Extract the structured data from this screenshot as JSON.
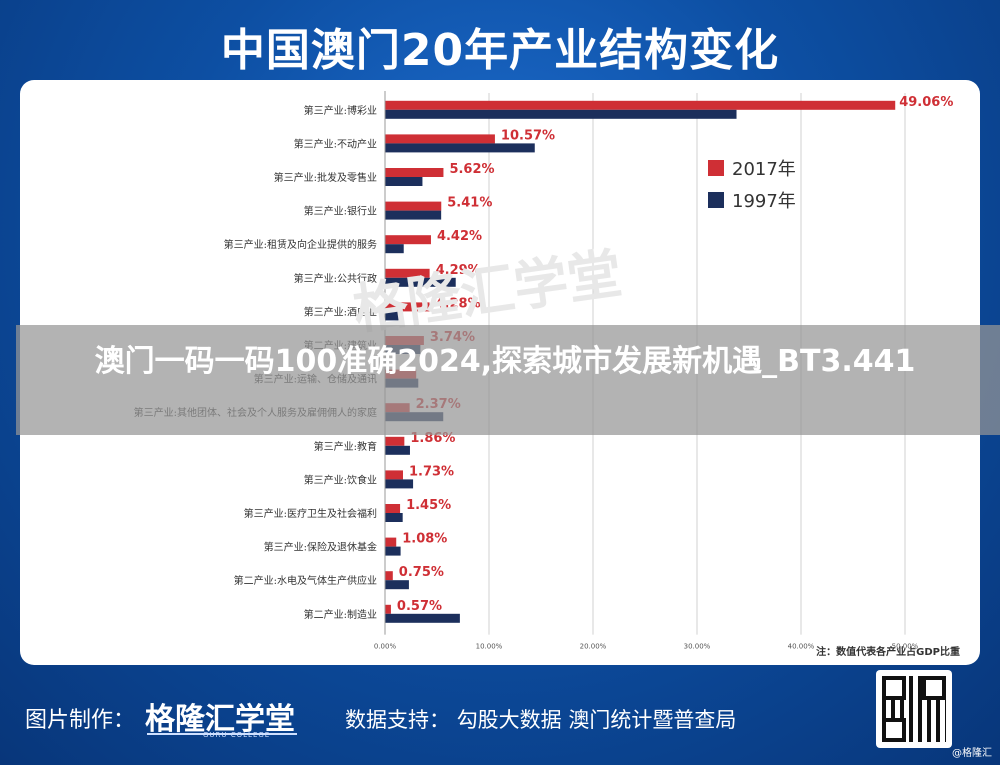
{
  "title": "中国澳门20年产业结构变化",
  "overlay_text": "澳门一码一码100准确2024,探索城市发展新机遇_BT3.441",
  "watermark": "格隆汇学堂",
  "footer": {
    "made_by_label": "图片制作：",
    "brand_name": "格隆汇学堂",
    "brand_sub": "GURU COLLEGE",
    "source_label": "数据支持：",
    "source_names": "勾股大数据    澳门统计暨普查局",
    "corner_credit": "@格隆汇"
  },
  "colors": {
    "series_2017": "#cf2f35",
    "series_1997": "#1c2f5c",
    "background": "#0d4fa3"
  },
  "chart_data": {
    "type": "bar",
    "orientation": "horizontal",
    "categories": [
      "第三产业:博彩业",
      "第三产业:不动产业",
      "第三产业:批发及零售业",
      "第三产业:银行业",
      "第三产业:租赁及向企业提供的服务",
      "第三产业:公共行政",
      "第三产业:酒店业",
      "第二产业:建筑业",
      "第三产业:运输、仓储及通讯",
      "第三产业:其他团体、社会及个人服务及雇佣佣人的家庭",
      "第三产业:教育",
      "第三产业:饮食业",
      "第三产业:医疗卫生及社会福利",
      "第三产业:保险及退休基金",
      "第二产业:水电及气体生产供应业",
      "第二产业:制造业"
    ],
    "series": [
      {
        "name": "2017年",
        "color": "#cf2f35",
        "values": [
          49.06,
          10.57,
          5.62,
          5.41,
          4.42,
          4.29,
          4.28,
          3.74,
          3.0,
          2.37,
          1.86,
          1.73,
          1.45,
          1.08,
          0.75,
          0.57
        ],
        "labels": [
          "49.06%",
          "10.57%",
          "5.62%",
          "5.41%",
          "4.42%",
          "4.29%",
          "4.28%",
          "3.74%",
          "",
          "2.37%",
          "1.86%",
          "1.73%",
          "1.45%",
          "1.08%",
          "0.75%",
          "0.57%"
        ]
      },
      {
        "name": "1997年",
        "color": "#1c2f5c",
        "values": [
          33.8,
          14.4,
          3.6,
          5.4,
          1.8,
          6.8,
          1.6,
          3.4,
          3.2,
          5.6,
          2.4,
          2.7,
          1.7,
          1.5,
          2.3,
          7.2
        ]
      }
    ],
    "xlim": [
      0,
      50
    ],
    "xticks": [
      "0.00%",
      "10.00%",
      "20.00%",
      "30.00%",
      "40.00%",
      "50.00%"
    ],
    "legend_position": "right",
    "note": "注：数值代表各产业占GDP比重"
  }
}
